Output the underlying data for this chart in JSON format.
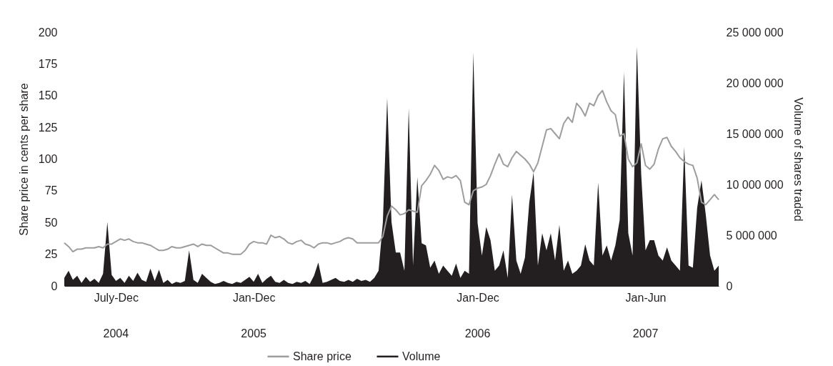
{
  "chart_data": {
    "type": "line",
    "categories": [
      null,
      null,
      null,
      null,
      null,
      null,
      null,
      null,
      null,
      null,
      null,
      null,
      "July-Dec",
      null,
      null,
      null,
      null,
      null,
      null,
      null,
      null,
      null,
      null,
      null,
      null,
      null,
      null,
      null,
      null,
      null,
      null,
      null,
      null,
      null,
      null,
      null,
      null,
      null,
      null,
      null,
      null,
      null,
      null,
      null,
      "Jan-Dec",
      null,
      null,
      null,
      null,
      null,
      null,
      null,
      null,
      null,
      null,
      null,
      null,
      null,
      null,
      null,
      null,
      null,
      null,
      null,
      null,
      null,
      null,
      null,
      null,
      null,
      null,
      null,
      null,
      null,
      null,
      null,
      null,
      null,
      null,
      null,
      null,
      null,
      null,
      null,
      null,
      null,
      null,
      null,
      null,
      null,
      null,
      null,
      null,
      null,
      null,
      null,
      "Jan-Dec",
      null,
      null,
      null,
      null,
      null,
      null,
      null,
      null,
      null,
      null,
      null,
      null,
      null,
      null,
      null,
      null,
      null,
      null,
      null,
      null,
      null,
      null,
      null,
      null,
      null,
      null,
      null,
      null,
      null,
      null,
      null,
      null,
      null,
      null,
      null,
      null,
      null,
      null,
      "Jan-Jun",
      null,
      null,
      null,
      null,
      null,
      null,
      null,
      null,
      null,
      null,
      null,
      null,
      null,
      null,
      null,
      null,
      null
    ],
    "series": [
      {
        "name": "Share price",
        "color": "#9d9d9d",
        "values": [
          34,
          31,
          27,
          29,
          29,
          30,
          30,
          30,
          31,
          30,
          33,
          33,
          35,
          37,
          36,
          37,
          35,
          34,
          34,
          33,
          32,
          30,
          28,
          28,
          29,
          31,
          30,
          30,
          31,
          32,
          33,
          31,
          33,
          32,
          32,
          30,
          28,
          26,
          26,
          25,
          25,
          25,
          28,
          33,
          35,
          34,
          34,
          33,
          40,
          38,
          39,
          37,
          34,
          33,
          35,
          36,
          33,
          32,
          30,
          33,
          34,
          34,
          33,
          34,
          35,
          37,
          38,
          37,
          34,
          34,
          34,
          34,
          34,
          34,
          39,
          55,
          63,
          60,
          56,
          57,
          60,
          59,
          58,
          79,
          83,
          88,
          95,
          91,
          84,
          86,
          85,
          87,
          83,
          66,
          64,
          75,
          77,
          78,
          80,
          87,
          96,
          104,
          96,
          94,
          101,
          106,
          103,
          100,
          96,
          90,
          97,
          110,
          123,
          124,
          120,
          116,
          128,
          133,
          129,
          144,
          140,
          134,
          144,
          142,
          150,
          154,
          145,
          138,
          135,
          118,
          120,
          100,
          94,
          97,
          112,
          95,
          92,
          96,
          108,
          116,
          117,
          110,
          106,
          101,
          98,
          96,
          95,
          85,
          66,
          64,
          68,
          72,
          68
        ]
      },
      {
        "name": "Volume",
        "type": "area",
        "axis": "y2",
        "color": "#231f20",
        "values": [
          800000,
          1500000,
          600000,
          1000000,
          300000,
          900000,
          400000,
          700000,
          300000,
          1200000,
          6300000,
          1100000,
          500000,
          800000,
          300000,
          1000000,
          500000,
          1300000,
          600000,
          400000,
          1700000,
          500000,
          1600000,
          300000,
          600000,
          200000,
          400000,
          300000,
          500000,
          3500000,
          600000,
          300000,
          1200000,
          800000,
          400000,
          200000,
          300000,
          500000,
          300000,
          200000,
          400000,
          300000,
          600000,
          900000,
          400000,
          1200000,
          300000,
          700000,
          1000000,
          400000,
          300000,
          600000,
          300000,
          200000,
          400000,
          300000,
          500000,
          200000,
          1000000,
          2300000,
          300000,
          400000,
          600000,
          800000,
          500000,
          400000,
          600000,
          400000,
          700000,
          500000,
          600000,
          400000,
          800000,
          1500000,
          6300000,
          18500000,
          6300000,
          3300000,
          3300000,
          1500000,
          17500000,
          2000000,
          10700000,
          4200000,
          4000000,
          1800000,
          2500000,
          1200000,
          2000000,
          1500000,
          1000000,
          2200000,
          800000,
          1500000,
          1200000,
          23000000,
          6200000,
          3000000,
          5800000,
          4500000,
          1500000,
          2000000,
          3500000,
          800000,
          9000000,
          2500000,
          1200000,
          2800000,
          8200000,
          11200000,
          2000000,
          5200000,
          3500000,
          5200000,
          2500000,
          6000000,
          1500000,
          2500000,
          1200000,
          1500000,
          2000000,
          4100000,
          2500000,
          2000000,
          10200000,
          3000000,
          4000000,
          2500000,
          4000000,
          6500000,
          21100000,
          5200000,
          3000000,
          23600000,
          11000000,
          3500000,
          4500000,
          4500000,
          3000000,
          2500000,
          3800000,
          2500000,
          2000000,
          1500000,
          13700000,
          2000000,
          1800000,
          7700000,
          10400000,
          7000000,
          3000000,
          1500000,
          2000000
        ]
      }
    ],
    "ylabel": "Share price in cents per share",
    "y2label": "Volume of shares traded",
    "ylim": [
      0,
      200
    ],
    "yticks": [
      0,
      25,
      50,
      75,
      100,
      125,
      150,
      175,
      200
    ],
    "y2lim": [
      0,
      25000000
    ],
    "y2ticks": [
      {
        "value": 0,
        "label": "0"
      },
      {
        "value": 5000000,
        "label": "5 000 000"
      },
      {
        "value": 10000000,
        "label": "10 000 000"
      },
      {
        "value": 15000000,
        "label": "15 000 000"
      },
      {
        "value": 20000000,
        "label": "20 000 000"
      },
      {
        "value": 25000000,
        "label": "25 000 000"
      }
    ],
    "annotations": [
      "2004",
      "2005",
      "2006",
      "2007"
    ],
    "legend": "bottom",
    "grid": false
  }
}
